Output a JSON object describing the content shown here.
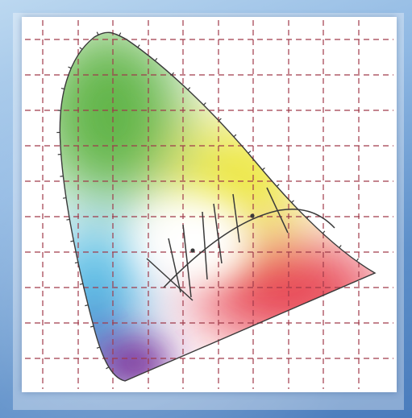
{
  "figure": {
    "type": "chromaticity-diagram",
    "grid": true,
    "grid_color": "#a03a4a",
    "background_color": "#ffffff",
    "frame_color": "#6d9ed2",
    "locus_color": "#3a3a3a",
    "planckian_locus": true,
    "isotemperature_lines": 7,
    "marked_points": 2,
    "gamut_colors": {
      "green": "#62b548",
      "yellow": "#ece63a",
      "red": "#e63b4a",
      "blue": "#3a66c4",
      "violet": "#7a2a96",
      "cyan": "#4ab7e2",
      "white": "#ffffff"
    }
  }
}
